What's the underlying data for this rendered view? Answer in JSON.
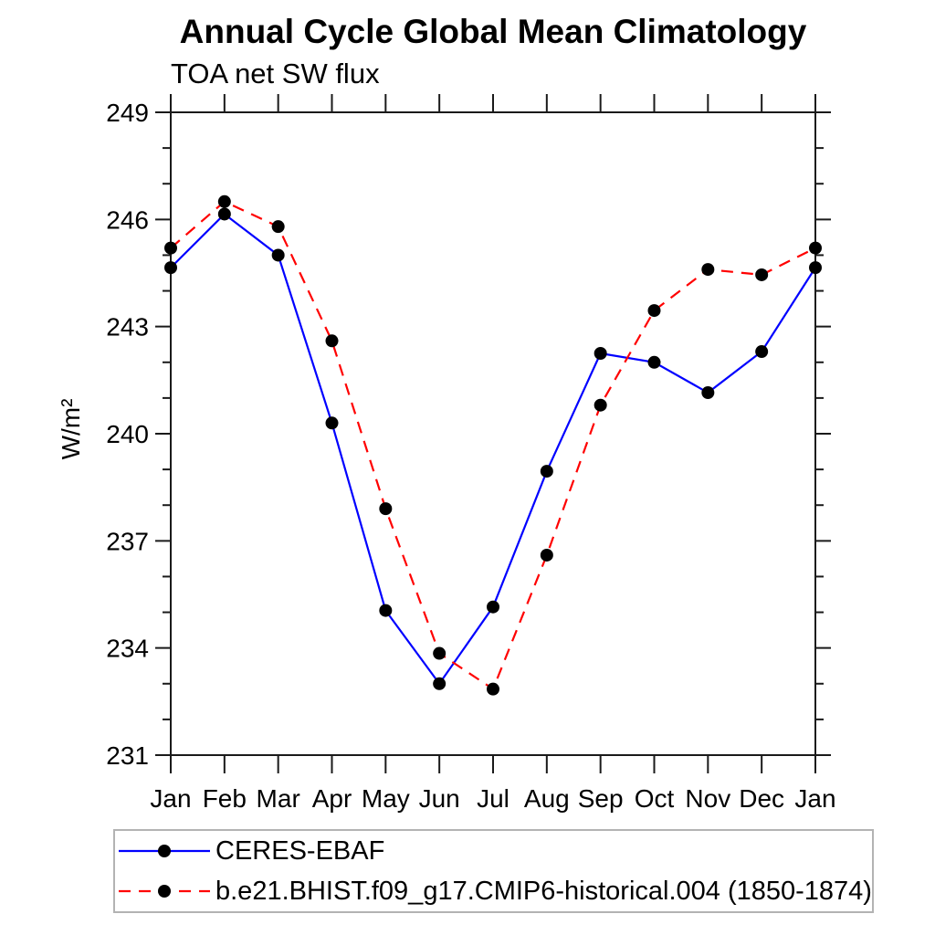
{
  "chart_data": {
    "type": "line",
    "title": "Annual Cycle Global Mean Climatology",
    "subtitle": "TOA net SW flux",
    "ylabel": "W/m²",
    "xlabel": "",
    "categories": [
      "Jan",
      "Feb",
      "Mar",
      "Apr",
      "May",
      "Jun",
      "Jul",
      "Aug",
      "Sep",
      "Oct",
      "Nov",
      "Dec",
      "Jan"
    ],
    "series": [
      {
        "name": "CERES-EBAF",
        "color": "#0000ff",
        "line_style": "solid",
        "marker": "circle",
        "marker_color": "#000000",
        "values": [
          244.65,
          246.15,
          245.0,
          240.3,
          235.05,
          233.0,
          235.15,
          238.95,
          242.25,
          242.0,
          241.15,
          242.3,
          244.65
        ]
      },
      {
        "name": "b.e21.BHIST.f09_g17.CMIP6-historical.004 (1850-1874)",
        "color": "#ff0000",
        "line_style": "dashed",
        "marker": "circle",
        "marker_color": "#000000",
        "values": [
          245.2,
          246.5,
          245.8,
          242.6,
          237.9,
          233.85,
          232.85,
          236.6,
          240.8,
          243.45,
          244.6,
          244.45,
          245.2
        ]
      }
    ],
    "ylim": [
      231,
      249
    ],
    "yticks_major": [
      231,
      234,
      237,
      240,
      243,
      246,
      249
    ],
    "ytick_minor_step": 1,
    "grid": false,
    "legend_position": "bottom-left",
    "axis_color": "#1a1a1a"
  }
}
